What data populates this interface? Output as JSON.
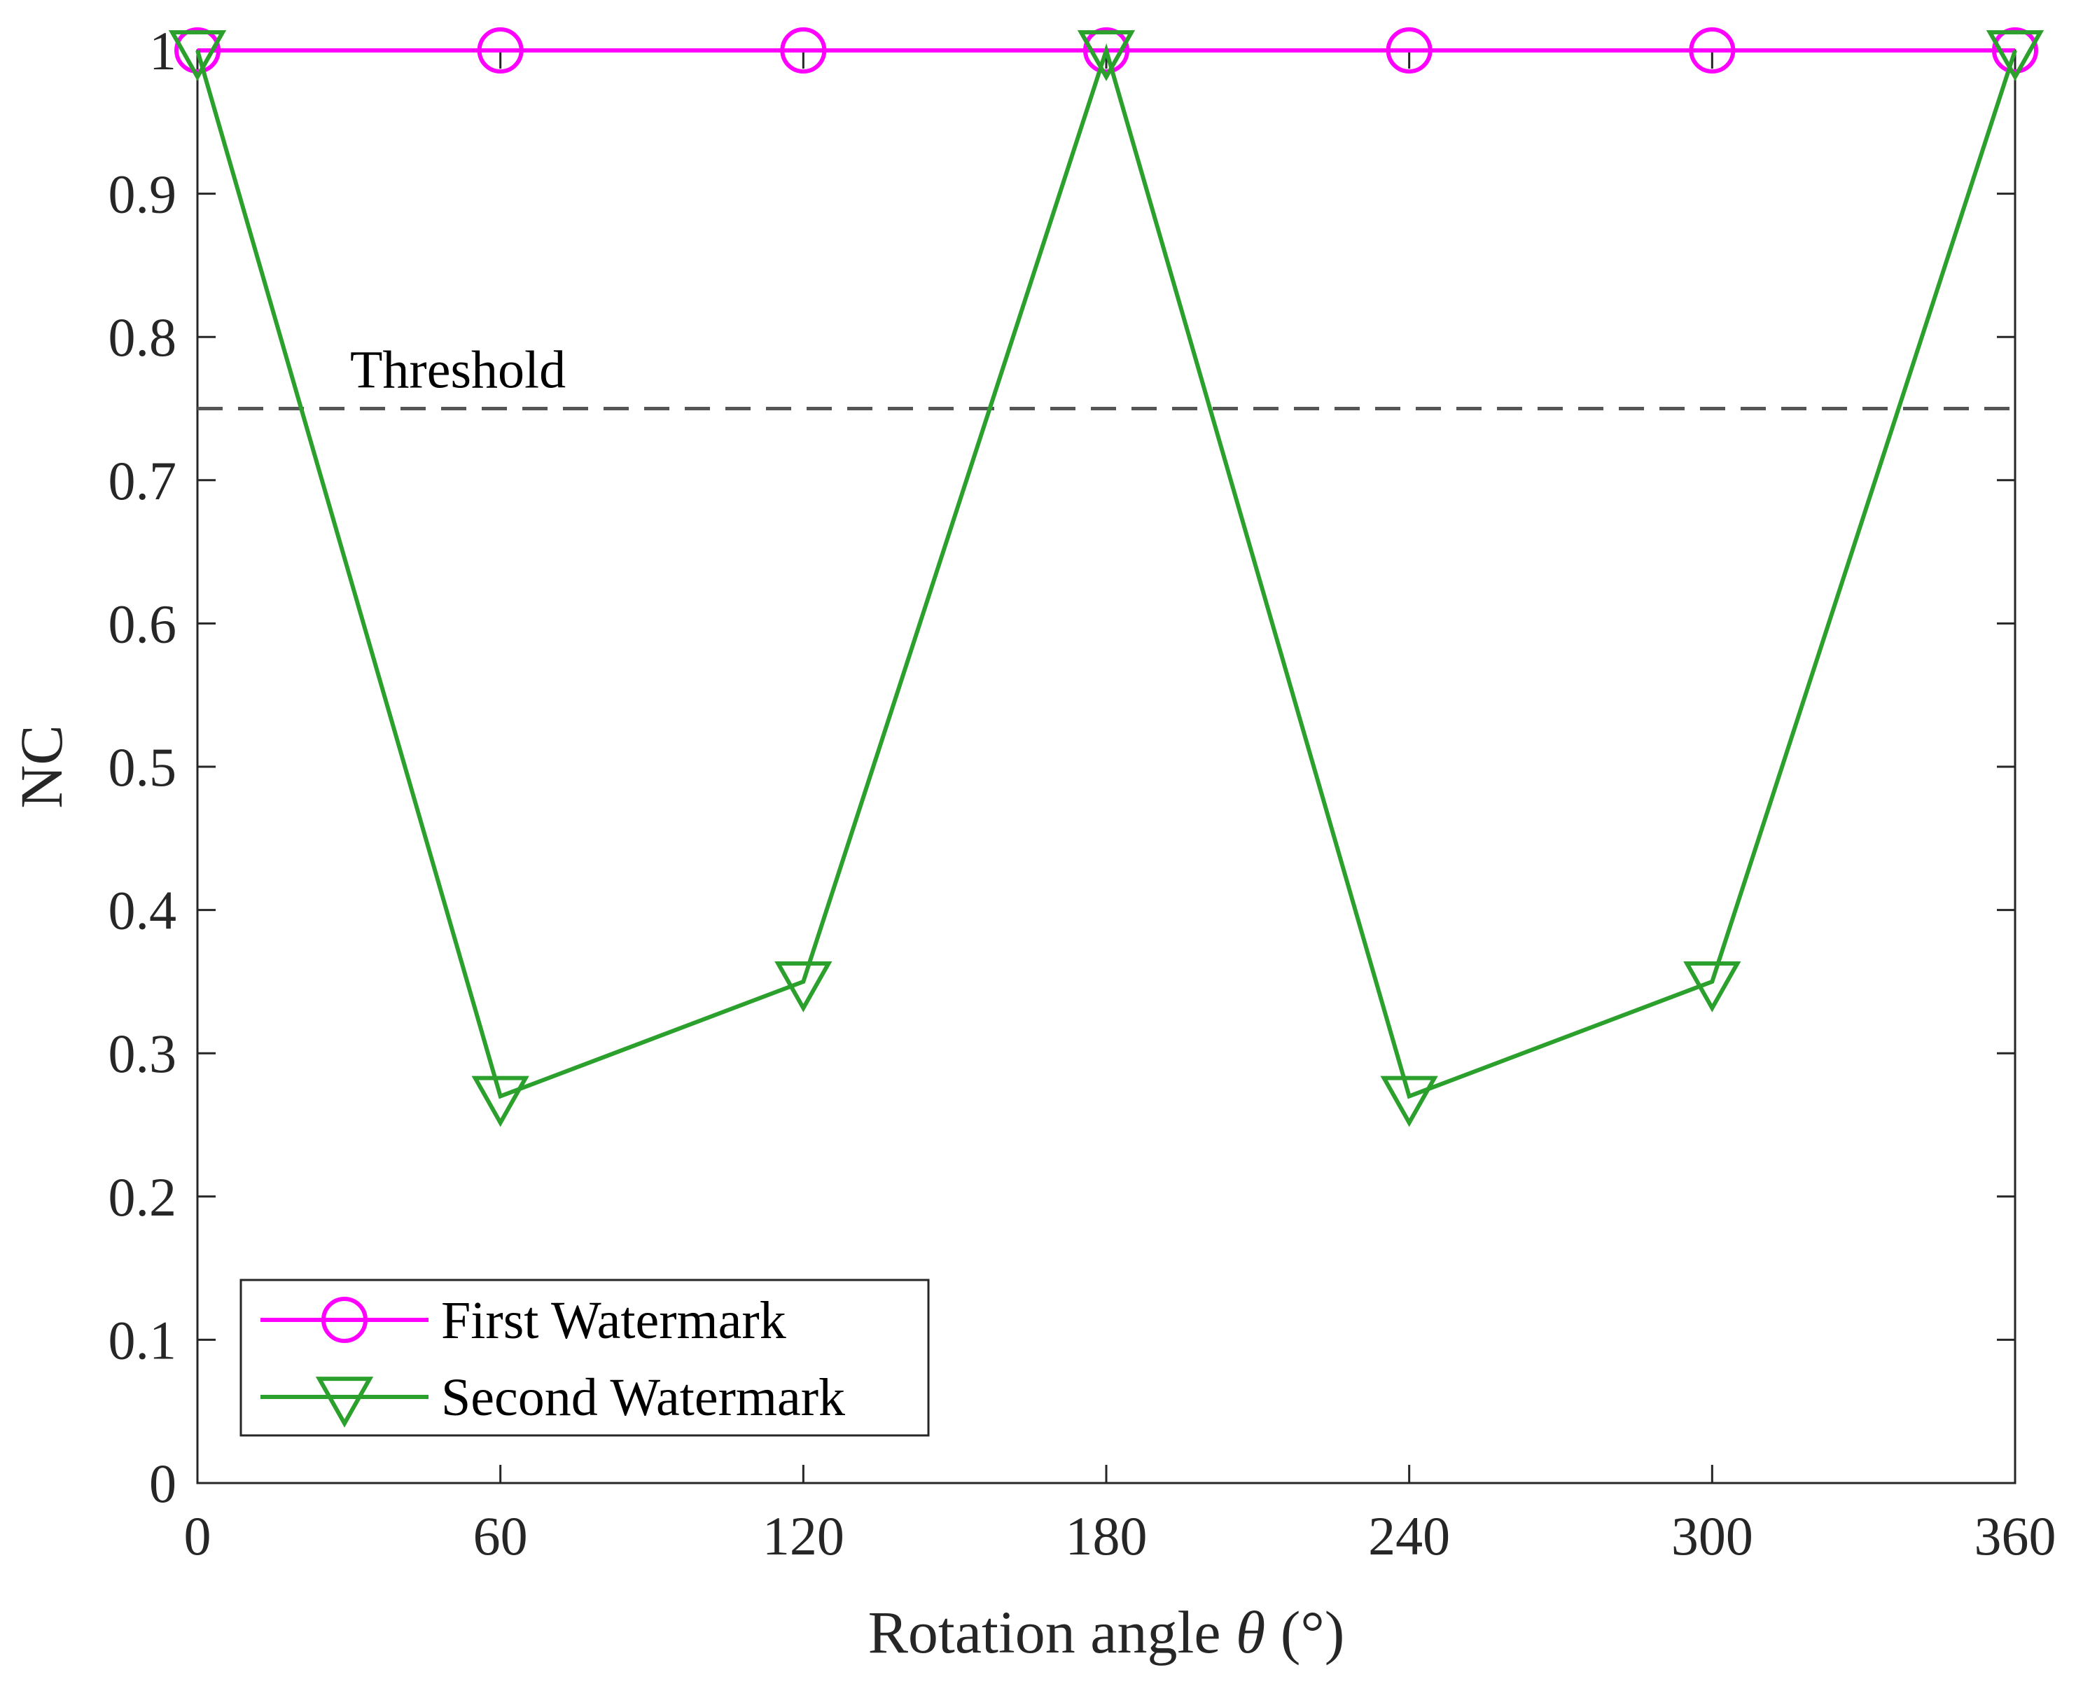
{
  "chart_data": {
    "type": "line",
    "title": "",
    "xlabel_prefix": "Rotation angle ",
    "xlabel_symbol": "θ",
    "xlabel_suffix": " (°)",
    "ylabel": "NC",
    "xlim": [
      0,
      360
    ],
    "ylim": [
      0,
      1
    ],
    "x": [
      0,
      60,
      120,
      180,
      240,
      300,
      360
    ],
    "xticks": [
      "0",
      "60",
      "120",
      "180",
      "240",
      "300",
      "360"
    ],
    "yticks": [
      "0",
      "0.1",
      "0.2",
      "0.3",
      "0.4",
      "0.5",
      "0.6",
      "0.7",
      "0.8",
      "0.9",
      "1"
    ],
    "grid": false,
    "legend_position": "bottom-left",
    "series": [
      {
        "name": "First Watermark",
        "values": [
          1,
          1,
          1,
          1,
          1,
          1,
          1
        ],
        "color": "#ff00ff",
        "marker": "circle"
      },
      {
        "name": "Second Watermark",
        "values": [
          1,
          0.27,
          0.35,
          1,
          0.27,
          0.35,
          1
        ],
        "color": "#2ca02c",
        "marker": "triangle-down"
      }
    ],
    "threshold": {
      "label": "Threshold",
      "value": 0.75,
      "color": "#555555"
    }
  }
}
